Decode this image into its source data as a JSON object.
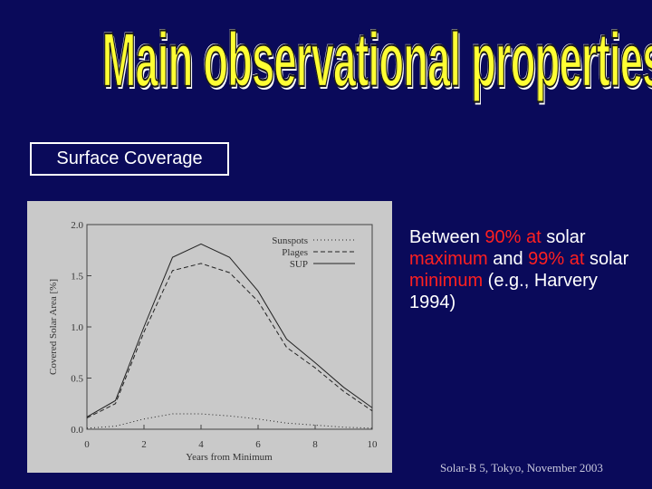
{
  "title": "Main observational properties",
  "label": "Surface Coverage",
  "text": [
    {
      "text": "Between ",
      "color": "#ffffff"
    },
    {
      "text": "90% at",
      "color": "#ff2020"
    },
    {
      "text": " solar ",
      "color": "#ffffff"
    },
    {
      "text": "maximum",
      "color": "#ff2020"
    },
    {
      "text": " and ",
      "color": "#ffffff"
    },
    {
      "text": "99% at",
      "color": "#ff2020"
    },
    {
      "text": " solar ",
      "color": "#ffffff"
    },
    {
      "text": "minimum",
      "color": "#ff2020"
    },
    {
      "text": " (e.g., Harvery 1994)",
      "color": "#ffffff"
    }
  ],
  "footer": "Solar-B 5, Tokyo, November 2003",
  "chart_data": {
    "type": "line",
    "xlabel": "Years from Minimum",
    "ylabel": "Covered Solar Area [%]",
    "x": [
      0,
      1,
      2,
      3,
      4,
      5,
      6,
      7,
      8,
      9,
      10
    ],
    "xlim": [
      0,
      10
    ],
    "xticks": [
      0,
      2,
      4,
      6,
      8,
      10
    ],
    "ylim": [
      0,
      2
    ],
    "yticks": [
      {
        "value": 0,
        "label": "0.0"
      },
      {
        "value": 0.5,
        "label": "0.5"
      },
      {
        "value": 1,
        "label": "1.0"
      },
      {
        "value": 1.5,
        "label": "1.5"
      },
      {
        "value": 2,
        "label": "2.0"
      }
    ],
    "series": [
      {
        "name": "Sunspots",
        "color": "#222222",
        "dash": "1 3",
        "values": [
          0.01,
          0.03,
          0.1,
          0.15,
          0.15,
          0.13,
          0.1,
          0.06,
          0.04,
          0.02,
          0.01
        ]
      },
      {
        "name": "Plages",
        "color": "#222222",
        "dash": "5 3",
        "values": [
          0.11,
          0.25,
          0.95,
          1.55,
          1.62,
          1.53,
          1.25,
          0.8,
          0.6,
          0.37,
          0.18
        ]
      },
      {
        "name": "SUP",
        "color": "#222222",
        "dash": "",
        "values": [
          0.12,
          0.28,
          1.0,
          1.68,
          1.81,
          1.68,
          1.35,
          0.88,
          0.65,
          0.41,
          0.21
        ]
      }
    ]
  }
}
